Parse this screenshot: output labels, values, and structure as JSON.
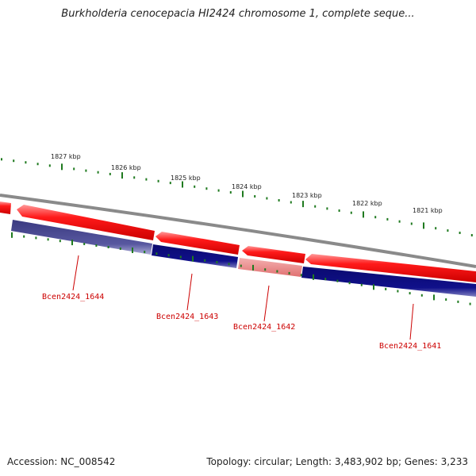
{
  "title": "Burkholderia cenocepacia HI2424 chromosome 1, complete seque...",
  "footer": {
    "accession": "Accession: NC_008542",
    "stats": "Topology: circular; Length: 3,483,902 bp; Genes: 3,233"
  },
  "colors": {
    "forward_cds": "#ee0000",
    "forward_cds_highlight": "#ff8a8a",
    "reverse_cds": "#0a0a80",
    "reverse_cds_faded": "#8888bb",
    "selected_cds": "#f09a9a",
    "backbone": "#8a8a8a",
    "ticks": "#1f7a1f",
    "gene_label": "#cc0000",
    "scale_label": "#222222"
  },
  "scale_labels": [
    {
      "text": "1827 kbp"
    },
    {
      "text": "1826 kbp"
    },
    {
      "text": "1825 kbp"
    },
    {
      "text": "1824 kbp"
    },
    {
      "text": "1823 kbp"
    },
    {
      "text": "1822 kbp"
    },
    {
      "text": "1821 kbp"
    }
  ],
  "gene_labels": [
    {
      "text": "Bcen2424_1644"
    },
    {
      "text": "Bcen2424_1643"
    },
    {
      "text": "Bcen2424_1642"
    },
    {
      "text": "Bcen2424_1641"
    }
  ]
}
